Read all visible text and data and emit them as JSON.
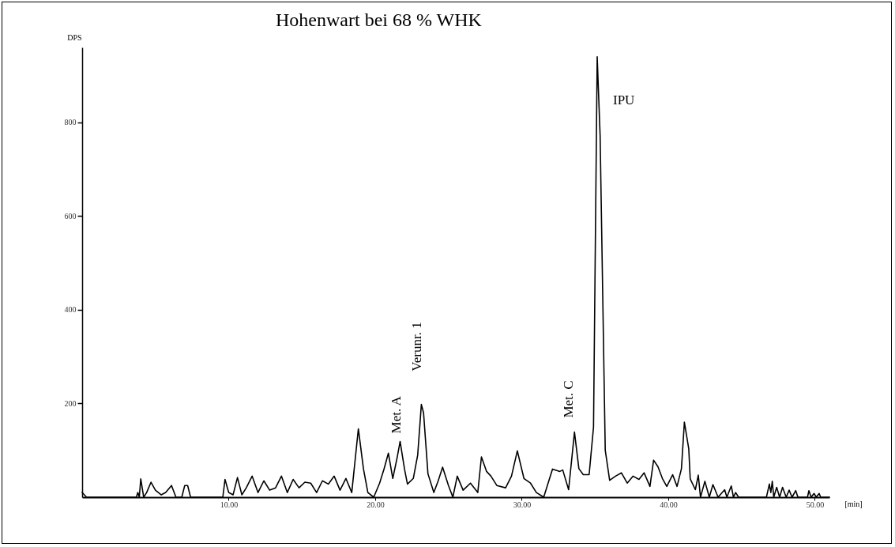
{
  "chart_data": {
    "type": "line",
    "title": "Hohenwart bei 68 % WHK",
    "xlabel": "[min]",
    "ylabel": "DPS",
    "xlim": [
      0,
      51
    ],
    "ylim": [
      0,
      960
    ],
    "xticks": [
      {
        "value": 10,
        "label": "10.00"
      },
      {
        "value": 20,
        "label": "20.00"
      },
      {
        "value": 30,
        "label": "30.00"
      },
      {
        "value": 40,
        "label": "40.00"
      },
      {
        "value": 50,
        "label": "50.00"
      }
    ],
    "yticks": [
      200,
      400,
      600,
      800
    ],
    "grid": false,
    "marker": "none",
    "line_style": "solid",
    "annotations": [
      {
        "text": "Met. A",
        "x": 21.7,
        "y": 119
      },
      {
        "text": "Verunr. 1",
        "x": 23.15,
        "y": 198
      },
      {
        "text": "Met. C",
        "x": 33.6,
        "y": 139
      },
      {
        "text": "IPU",
        "x": 35.15,
        "y": 940
      }
    ],
    "series": [
      {
        "color": "#000000",
        "x": [
          0,
          0.3,
          3.7,
          3.8,
          3.9,
          4.0,
          4.2,
          4.4,
          4.7,
          5.0,
          5.4,
          5.7,
          6.1,
          6.4,
          6.8,
          7.0,
          7.2,
          7.4,
          9.6,
          9.75,
          10.0,
          10.3,
          10.6,
          10.9,
          11.2,
          11.6,
          12.0,
          12.4,
          12.8,
          13.2,
          13.6,
          14.0,
          14.4,
          14.8,
          15.2,
          15.6,
          16.0,
          16.4,
          16.8,
          17.2,
          17.6,
          18.0,
          18.4,
          18.85,
          19.2,
          19.5,
          19.9,
          20.3,
          20.6,
          20.9,
          21.2,
          21.5,
          21.7,
          22.0,
          22.2,
          22.6,
          22.9,
          23.15,
          23.3,
          23.6,
          24.0,
          24.3,
          24.6,
          25.0,
          25.3,
          25.6,
          26.0,
          26.5,
          27.0,
          27.25,
          27.6,
          27.9,
          28.3,
          28.9,
          29.3,
          29.7,
          30.15,
          30.6,
          31.0,
          31.5,
          32.1,
          32.6,
          32.8,
          33.2,
          33.6,
          33.9,
          34.2,
          34.6,
          34.9,
          35.15,
          35.35,
          35.7,
          36.0,
          36.4,
          36.8,
          37.2,
          37.6,
          38.0,
          38.35,
          38.75,
          39.0,
          39.3,
          39.6,
          39.9,
          40.3,
          40.6,
          40.9,
          41.1,
          41.4,
          41.5,
          41.85,
          42.05,
          42.2,
          42.5,
          42.8,
          43.05,
          43.4,
          43.85,
          44.0,
          44.3,
          44.45,
          44.6,
          44.8,
          46.7,
          46.9,
          47.0,
          47.1,
          47.2,
          47.4,
          47.6,
          47.8,
          48.05,
          48.25,
          48.45,
          48.7,
          48.85,
          49.5,
          49.6,
          49.75,
          49.95,
          50.1,
          50.3,
          50.4,
          51
        ],
        "values": [
          10,
          0,
          0,
          10,
          0,
          39,
          0,
          10,
          32,
          15,
          5,
          10,
          25,
          0,
          0,
          25,
          25,
          0,
          0,
          38,
          10,
          5,
          42,
          5,
          20,
          45,
          10,
          35,
          15,
          20,
          45,
          10,
          38,
          20,
          32,
          30,
          10,
          35,
          28,
          45,
          15,
          40,
          10,
          146,
          60,
          10,
          0,
          30,
          60,
          94,
          40,
          85,
          119,
          60,
          28,
          40,
          90,
          198,
          180,
          50,
          10,
          35,
          64,
          25,
          0,
          45,
          15,
          30,
          10,
          86,
          55,
          45,
          25,
          20,
          45,
          99,
          40,
          30,
          10,
          0,
          60,
          55,
          58,
          16,
          139,
          61,
          48,
          48,
          150,
          940,
          772,
          100,
          36,
          45,
          52,
          30,
          45,
          38,
          52,
          23,
          79,
          65,
          40,
          23,
          48,
          23,
          61,
          160,
          103,
          39,
          16,
          47,
          0,
          34,
          0,
          27,
          0,
          16,
          0,
          24,
          0,
          10,
          0,
          0,
          28,
          10,
          34,
          0,
          21,
          0,
          21,
          0,
          15,
          0,
          14,
          0,
          0,
          14,
          0,
          8,
          0,
          8,
          0,
          0
        ]
      }
    ]
  }
}
